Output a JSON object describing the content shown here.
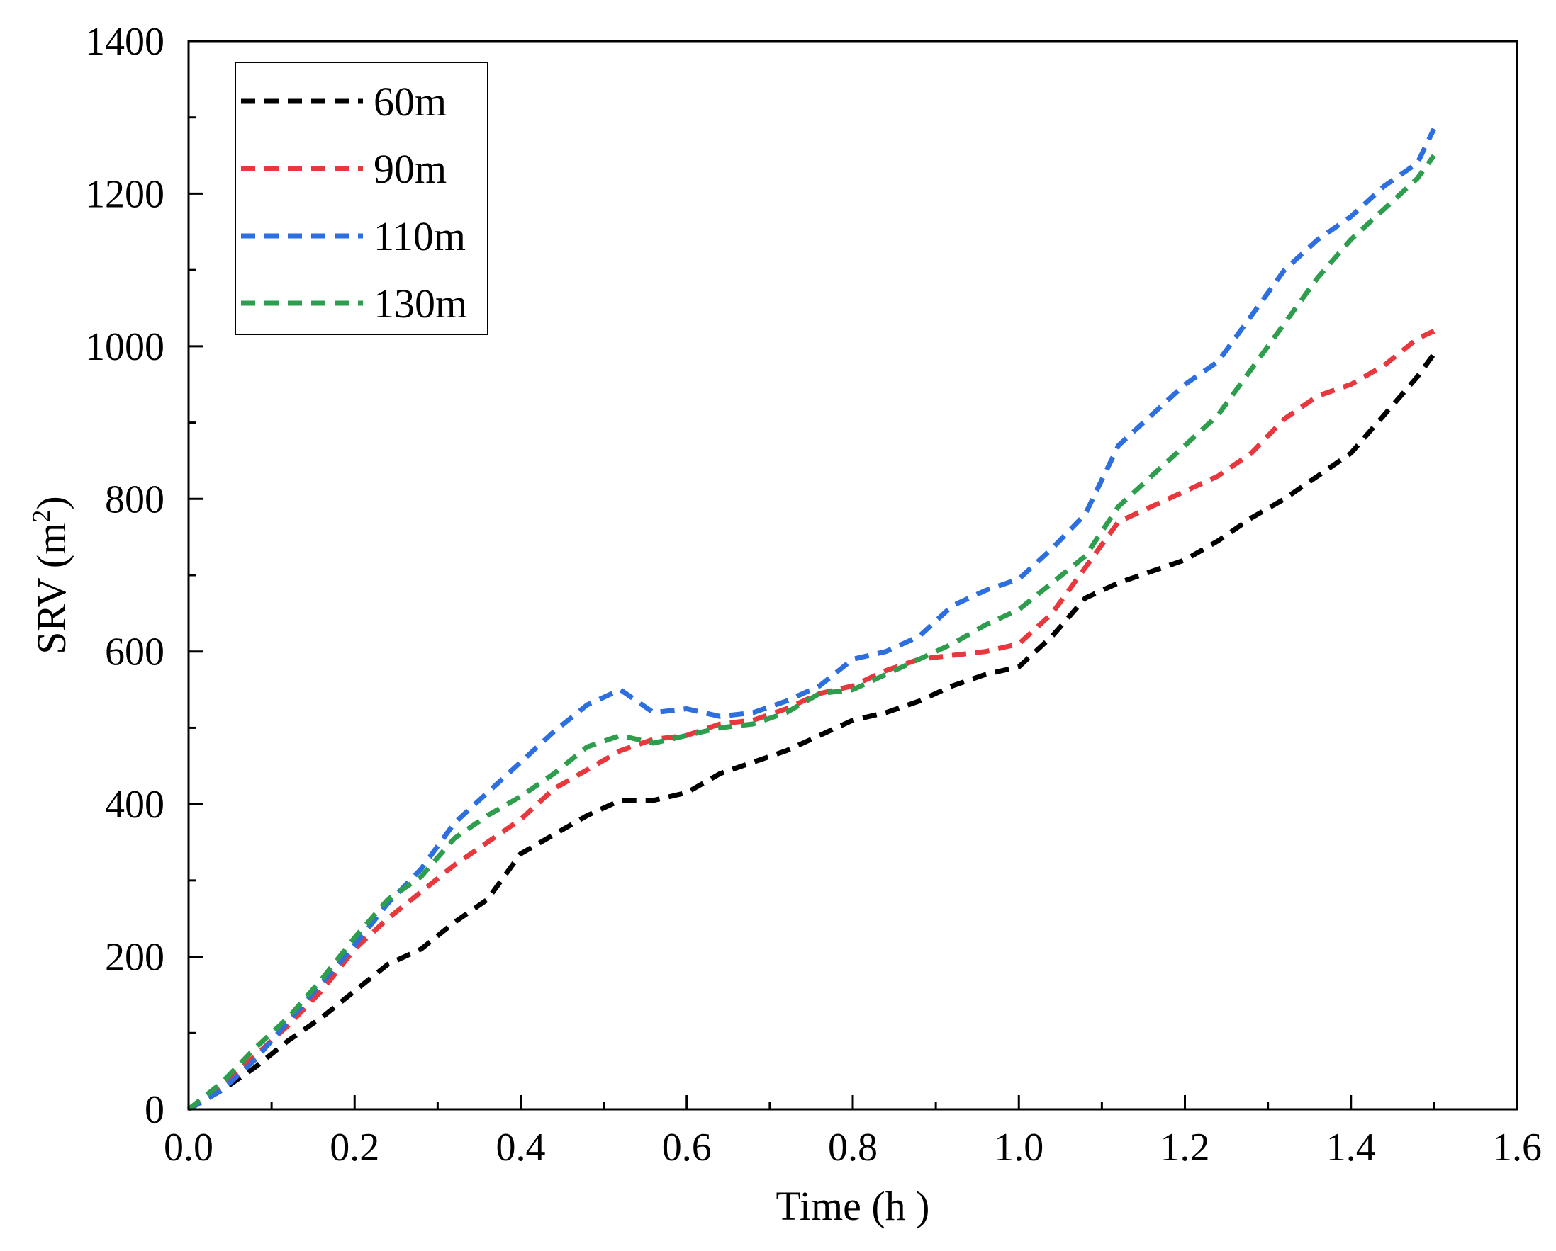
{
  "chart_data": {
    "type": "line",
    "xlabel": "Time (h )",
    "ylabel": "SRV (m",
    "ylabel_superscript": "2",
    "ylabel_close": ")",
    "xlim": [
      0.0,
      1.6
    ],
    "ylim": [
      0,
      1400
    ],
    "xticks": [
      "0.0",
      "0.2",
      "0.4",
      "0.6",
      "0.8",
      "1.0",
      "1.2",
      "1.4",
      "1.6"
    ],
    "yticks": [
      "0",
      "200",
      "400",
      "600",
      "800",
      "1000",
      "1200",
      "1400"
    ],
    "grid": false,
    "legend_position": "top-left",
    "line_style": "dashed",
    "series": [
      {
        "name": "60m",
        "color": "#000000",
        "x": [
          0.0,
          0.04,
          0.08,
          0.12,
          0.16,
          0.2,
          0.24,
          0.28,
          0.32,
          0.36,
          0.4,
          0.44,
          0.48,
          0.52,
          0.56,
          0.6,
          0.64,
          0.68,
          0.72,
          0.76,
          0.8,
          0.84,
          0.88,
          0.92,
          0.96,
          1.0,
          1.04,
          1.08,
          1.12,
          1.16,
          1.2,
          1.24,
          1.28,
          1.32,
          1.36,
          1.4,
          1.44,
          1.48,
          1.5
        ],
        "values": [
          0,
          25,
          55,
          90,
          120,
          155,
          190,
          210,
          245,
          275,
          335,
          360,
          385,
          405,
          405,
          415,
          440,
          455,
          470,
          490,
          510,
          520,
          535,
          555,
          570,
          580,
          620,
          670,
          690,
          705,
          720,
          745,
          775,
          800,
          830,
          860,
          910,
          960,
          990
        ]
      },
      {
        "name": "90m",
        "color": "#e8383d",
        "x": [
          0.0,
          0.04,
          0.08,
          0.12,
          0.16,
          0.2,
          0.24,
          0.28,
          0.32,
          0.36,
          0.4,
          0.44,
          0.48,
          0.52,
          0.56,
          0.6,
          0.64,
          0.68,
          0.72,
          0.76,
          0.8,
          0.84,
          0.88,
          0.92,
          0.96,
          1.0,
          1.04,
          1.08,
          1.12,
          1.16,
          1.2,
          1.24,
          1.28,
          1.32,
          1.36,
          1.4,
          1.44,
          1.48,
          1.5
        ],
        "values": [
          0,
          30,
          70,
          110,
          155,
          210,
          250,
          285,
          320,
          350,
          380,
          420,
          445,
          470,
          485,
          490,
          505,
          510,
          525,
          545,
          555,
          575,
          590,
          595,
          600,
          610,
          650,
          710,
          770,
          790,
          810,
          830,
          860,
          905,
          935,
          950,
          975,
          1010,
          1020
        ]
      },
      {
        "name": "110m",
        "color": "#2e6fe0",
        "x": [
          0.0,
          0.04,
          0.08,
          0.12,
          0.16,
          0.2,
          0.24,
          0.28,
          0.32,
          0.36,
          0.4,
          0.44,
          0.48,
          0.52,
          0.56,
          0.6,
          0.64,
          0.68,
          0.72,
          0.76,
          0.8,
          0.84,
          0.88,
          0.92,
          0.96,
          1.0,
          1.04,
          1.08,
          1.12,
          1.16,
          1.2,
          1.24,
          1.28,
          1.32,
          1.36,
          1.4,
          1.44,
          1.48,
          1.5
        ],
        "values": [
          0,
          25,
          65,
          115,
          165,
          215,
          270,
          315,
          375,
          415,
          455,
          495,
          530,
          550,
          520,
          525,
          515,
          520,
          535,
          555,
          590,
          600,
          620,
          660,
          680,
          695,
          735,
          780,
          870,
          910,
          950,
          980,
          1040,
          1100,
          1140,
          1170,
          1210,
          1240,
          1285
        ]
      },
      {
        "name": "130m",
        "color": "#2e9e4e",
        "x": [
          0.0,
          0.04,
          0.08,
          0.12,
          0.16,
          0.2,
          0.24,
          0.28,
          0.32,
          0.36,
          0.4,
          0.44,
          0.48,
          0.52,
          0.56,
          0.6,
          0.64,
          0.68,
          0.72,
          0.76,
          0.8,
          0.84,
          0.88,
          0.92,
          0.96,
          1.0,
          1.04,
          1.08,
          1.12,
          1.16,
          1.2,
          1.24,
          1.28,
          1.32,
          1.36,
          1.4,
          1.44,
          1.48,
          1.5
        ],
        "values": [
          0,
          35,
          80,
          120,
          170,
          225,
          275,
          305,
          355,
          385,
          410,
          440,
          475,
          490,
          480,
          490,
          500,
          505,
          520,
          545,
          550,
          570,
          590,
          610,
          635,
          655,
          690,
          725,
          790,
          830,
          870,
          910,
          970,
          1030,
          1090,
          1140,
          1180,
          1220,
          1250
        ]
      }
    ]
  }
}
